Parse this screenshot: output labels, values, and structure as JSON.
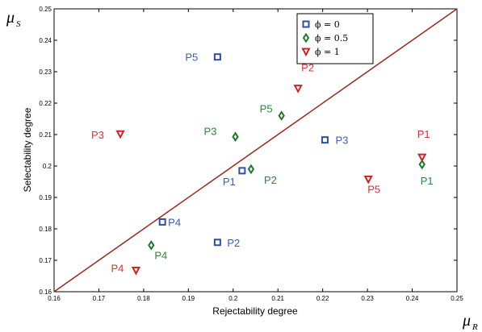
{
  "chart_data": {
    "type": "scatter",
    "xlabel": "Rejectability degree",
    "ylabel": "Selectability degree",
    "xlim": [
      0.16,
      0.25
    ],
    "ylim": [
      0.16,
      0.25
    ],
    "x_ticks": [
      "0.16",
      "0.17",
      "0.18",
      "0.19",
      "0.2",
      "0.21",
      "0.22",
      "0.23",
      "0.24",
      "0.25"
    ],
    "y_ticks": [
      "0.16",
      "0.17",
      "0.18",
      "0.19",
      "0.2",
      "0.21",
      "0.22",
      "0.23",
      "0.24",
      "0.25"
    ],
    "x_symbol": "μ",
    "x_symbol_sub": "R",
    "y_symbol": "μ",
    "y_symbol_sub": "S",
    "reference_line": {
      "from": [
        0.16,
        0.16
      ],
      "to": [
        0.25,
        0.25
      ],
      "color": "#9b2a1e"
    },
    "legend": {
      "position": "top-right"
    },
    "series": [
      {
        "name": "ϕ = 0",
        "marker": "square",
        "color": "#2f4ea8",
        "label_color": "#3b5cb8",
        "points": [
          {
            "label": "P1",
            "x": 0.202,
            "y": 0.1985
          },
          {
            "label": "P2",
            "x": 0.1965,
            "y": 0.1757
          },
          {
            "label": "P3",
            "x": 0.2205,
            "y": 0.2083
          },
          {
            "label": "P4",
            "x": 0.1842,
            "y": 0.1822
          },
          {
            "label": "P5",
            "x": 0.1965,
            "y": 0.2347
          }
        ]
      },
      {
        "name": "ϕ = 0.5",
        "marker": "diamond",
        "color": "#1a7a2a",
        "label_color": "#2a8a35",
        "points": [
          {
            "label": "P1",
            "x": 0.2422,
            "y": 0.2005
          },
          {
            "label": "P2",
            "x": 0.204,
            "y": 0.199
          },
          {
            "label": "P3",
            "x": 0.2005,
            "y": 0.2093
          },
          {
            "label": "P4",
            "x": 0.1817,
            "y": 0.1748
          },
          {
            "label": "P5",
            "x": 0.2108,
            "y": 0.216
          }
        ]
      },
      {
        "name": "ϕ = 1",
        "marker": "triangle-down",
        "color": "#d42020",
        "label_color": "#e03030",
        "points": [
          {
            "label": "P1",
            "x": 0.2422,
            "y": 0.2028
          },
          {
            "label": "P2",
            "x": 0.2145,
            "y": 0.2247
          },
          {
            "label": "P3",
            "x": 0.1748,
            "y": 0.2102
          },
          {
            "label": "P4",
            "x": 0.1783,
            "y": 0.1668
          },
          {
            "label": "P5",
            "x": 0.2302,
            "y": 0.1958
          }
        ]
      }
    ]
  }
}
